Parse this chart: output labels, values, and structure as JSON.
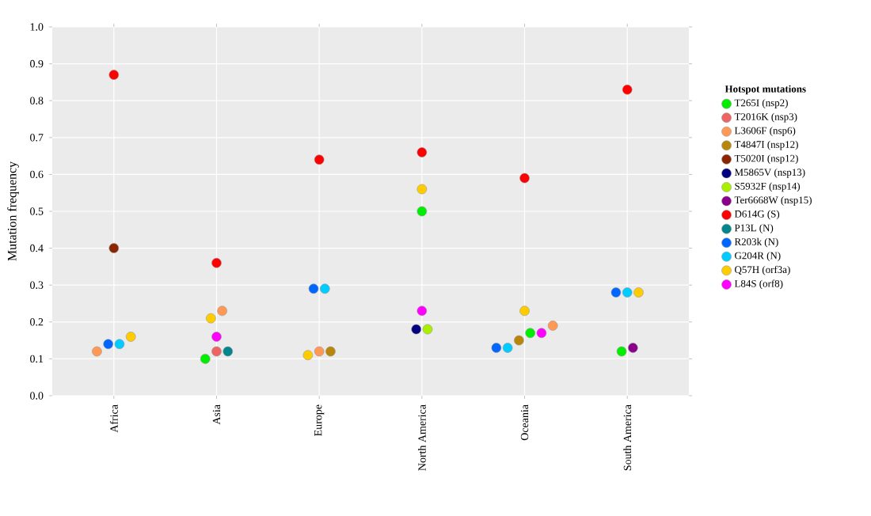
{
  "chart_data": {
    "type": "scatter",
    "ylabel": "Mutation frequency",
    "legend_title": "Hotspot mutations",
    "categories": [
      "Africa",
      "Asia",
      "Europe",
      "North America",
      "Oceania",
      "South America"
    ],
    "series": [
      {
        "name": "T265I (nsp2)",
        "color": "#00ee00",
        "values": [
          null,
          0.1,
          null,
          0.5,
          0.17,
          0.12
        ]
      },
      {
        "name": "T2016K (nsp3)",
        "color": "#ee6363",
        "values": [
          null,
          0.12,
          null,
          null,
          null,
          null
        ]
      },
      {
        "name": "L3606F (nsp6)",
        "color": "#ff9955",
        "values": [
          0.12,
          0.23,
          0.12,
          null,
          0.19,
          null
        ]
      },
      {
        "name": "T4847I (nsp12)",
        "color": "#b8860b",
        "values": [
          null,
          null,
          0.12,
          null,
          0.15,
          null
        ]
      },
      {
        "name": "T5020I (nsp12)",
        "color": "#8b2500",
        "values": [
          0.4,
          null,
          null,
          null,
          null,
          null
        ]
      },
      {
        "name": "M5865V (nsp13)",
        "color": "#000080",
        "values": [
          null,
          null,
          null,
          0.18,
          null,
          null
        ]
      },
      {
        "name": "S5932F (nsp14)",
        "color": "#aaee00",
        "values": [
          null,
          null,
          null,
          0.18,
          null,
          null
        ]
      },
      {
        "name": "Ter6668W (nsp15)",
        "color": "#8b008b",
        "values": [
          null,
          null,
          null,
          null,
          null,
          0.13
        ]
      },
      {
        "name": "D614G (S)",
        "color": "#ff0000",
        "values": [
          0.87,
          0.36,
          0.64,
          0.66,
          0.59,
          0.83
        ]
      },
      {
        "name": "P13L (N)",
        "color": "#00868b",
        "values": [
          null,
          0.12,
          null,
          null,
          null,
          null
        ]
      },
      {
        "name": "R203k (N)",
        "color": "#0066ff",
        "values": [
          0.14,
          null,
          0.29,
          null,
          0.13,
          0.28
        ]
      },
      {
        "name": "G204R (N)",
        "color": "#00ccff",
        "values": [
          0.14,
          null,
          0.29,
          null,
          0.13,
          0.28
        ]
      },
      {
        "name": "Q57H (orf3a)",
        "color": "#ffcc00",
        "values": [
          0.16,
          0.21,
          0.11,
          0.56,
          0.23,
          0.28
        ]
      },
      {
        "name": "L84S (orf8)",
        "color": "#ff00ff",
        "values": [
          null,
          0.16,
          null,
          0.23,
          0.17,
          null
        ]
      }
    ],
    "ylim": [
      0,
      1.0
    ],
    "yticks": [
      {
        "value": 0,
        "label": "0.0"
      },
      {
        "value": 0.1,
        "label": "0.1"
      },
      {
        "value": 0.2,
        "label": "0.2"
      },
      {
        "value": 0.3,
        "label": "0.3"
      },
      {
        "value": 0.4,
        "label": "0.4"
      },
      {
        "value": 0.5,
        "label": "0.5"
      },
      {
        "value": 0.6,
        "label": "0.6"
      },
      {
        "value": 0.7,
        "label": "0.7"
      },
      {
        "value": 0.8,
        "label": "0.8"
      },
      {
        "value": 0.9,
        "label": "0.9"
      },
      {
        "value": 1.0,
        "label": "1.0"
      }
    ],
    "grid": true,
    "legend": "right"
  }
}
